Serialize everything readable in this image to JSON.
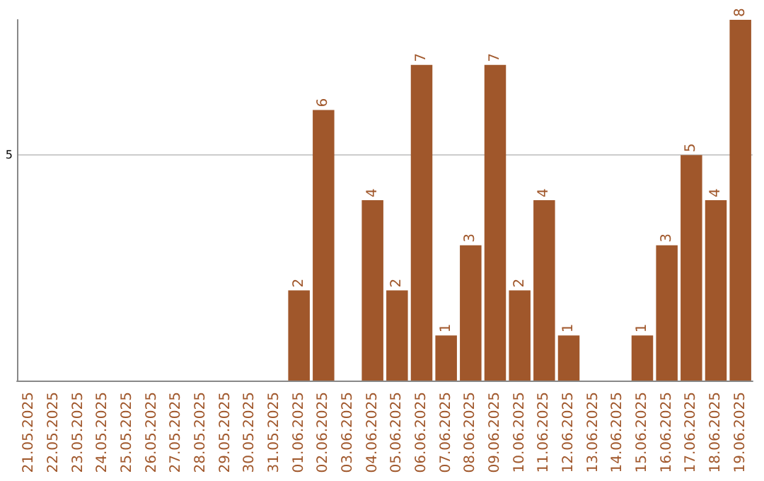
{
  "chart_data": {
    "type": "bar",
    "categories": [
      "21.05.2025",
      "22.05.2025",
      "23.05.2025",
      "24.05.2025",
      "25.05.2025",
      "26.05.2025",
      "27.05.2025",
      "28.05.2025",
      "29.05.2025",
      "30.05.2025",
      "31.05.2025",
      "01.06.2025",
      "02.06.2025",
      "03.06.2025",
      "04.06.2025",
      "05.06.2025",
      "06.06.2025",
      "07.06.2025",
      "08.06.2025",
      "09.06.2025",
      "10.06.2025",
      "11.06.2025",
      "12.06.2025",
      "13.06.2025",
      "14.06.2025",
      "15.06.2025",
      "16.06.2025",
      "17.06.2025",
      "18.06.2025",
      "19.06.2025"
    ],
    "values": [
      0,
      0,
      0,
      0,
      0,
      0,
      0,
      0,
      0,
      0,
      0,
      2,
      6,
      0,
      4,
      2,
      7,
      1,
      3,
      7,
      2,
      4,
      1,
      0,
      0,
      1,
      3,
      5,
      4,
      8
    ],
    "value_labels": [
      null,
      null,
      null,
      null,
      null,
      null,
      null,
      null,
      null,
      null,
      null,
      "2",
      "6",
      null,
      "4",
      "2",
      "7",
      "1",
      "3",
      "7",
      "2",
      "4",
      "1",
      null,
      null,
      "1",
      "3",
      "5",
      "4",
      "8"
    ],
    "color": "#a0572b",
    "ylim": [
      0,
      8
    ],
    "yticks": [
      5
    ],
    "grid": "y"
  }
}
